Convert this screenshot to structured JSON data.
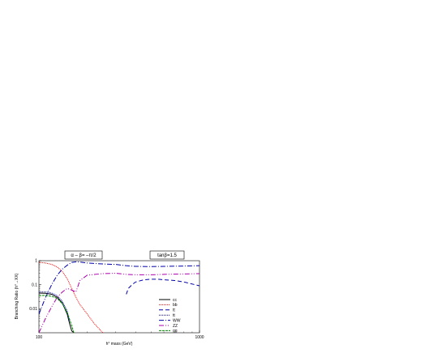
{
  "chart_data": {
    "type": "line",
    "xlabel": "h° mass (GeV)",
    "ylabel": "Branching Ratio (h°→XX)",
    "xscale": "log",
    "yscale": "log",
    "xlim": [
      100,
      1000
    ],
    "ylim": [
      0.001,
      1
    ],
    "x_ticks": [
      {
        "value": 100,
        "label": "100"
      },
      {
        "value": 1000,
        "label": "1000"
      }
    ],
    "y_ticks": [
      {
        "value": 1,
        "label": "1"
      },
      {
        "value": 0.1,
        "label": "0.1"
      },
      {
        "value": 0.01,
        "label": "0.01"
      }
    ],
    "annotations": [
      {
        "id": "alpha",
        "text": "α – β= –π/2",
        "boxed": true
      },
      {
        "id": "tanb",
        "text": "tanβ=1.5",
        "boxed": true
      }
    ],
    "legend_position": "bottom-right",
    "series": [
      {
        "name": "cc",
        "color": "#000000",
        "dash": "",
        "x": [
          100,
          110,
          120,
          130,
          140,
          150,
          155,
          160,
          165
        ],
        "y": [
          0.045,
          0.044,
          0.04,
          0.03,
          0.017,
          0.006,
          0.0025,
          0.0012,
          0.001
        ]
      },
      {
        "name": "bb",
        "color": "#ff0000",
        "dash": "1,1",
        "x": [
          100,
          110,
          120,
          130,
          140,
          150,
          160,
          170,
          180,
          200,
          220,
          250
        ],
        "y": [
          0.85,
          0.8,
          0.7,
          0.55,
          0.35,
          0.18,
          0.07,
          0.03,
          0.015,
          0.006,
          0.0025,
          0.001
        ]
      },
      {
        "name": "tt",
        "color": "#0000aa",
        "dash": "5,3",
        "x": [
          350,
          360,
          380,
          400,
          450,
          500,
          550,
          600,
          700,
          800,
          1000
        ],
        "y": [
          0.04,
          0.07,
          0.1,
          0.13,
          0.16,
          0.17,
          0.17,
          0.16,
          0.15,
          0.13,
          0.09
        ]
      },
      {
        "name": "tt",
        "color": "#0000aa",
        "dash": "1,1",
        "x": [
          100,
          110,
          120,
          130,
          140,
          150,
          155
        ],
        "y": [
          0.05,
          0.05,
          0.045,
          0.035,
          0.02,
          0.008,
          0.003
        ]
      },
      {
        "name": "WW",
        "color": "#0000aa",
        "dash": "6,2,1,2",
        "x": [
          100,
          110,
          120,
          130,
          140,
          150,
          160,
          170,
          180,
          200,
          250,
          300,
          350,
          400,
          500,
          600,
          800,
          1000
        ],
        "y": [
          0.006,
          0.03,
          0.1,
          0.25,
          0.45,
          0.65,
          0.85,
          0.9,
          0.88,
          0.8,
          0.73,
          0.7,
          0.62,
          0.58,
          0.57,
          0.58,
          0.6,
          0.62
        ]
      },
      {
        "name": "ZZ",
        "color": "#aa00aa",
        "dash": "6,2,1,2,1,2",
        "x": [
          100,
          110,
          120,
          130,
          140,
          150,
          160,
          170,
          180,
          200,
          250,
          300,
          350,
          400,
          500,
          600,
          800,
          1000
        ],
        "y": [
          0.001,
          0.004,
          0.012,
          0.03,
          0.05,
          0.07,
          0.06,
          0.05,
          0.15,
          0.25,
          0.29,
          0.3,
          0.27,
          0.26,
          0.26,
          0.27,
          0.28,
          0.29
        ]
      },
      {
        "name": "gg",
        "color": "#008800",
        "dash": "3,1",
        "x": [
          100,
          110,
          120,
          130,
          140,
          150,
          160,
          165
        ],
        "y": [
          0.035,
          0.036,
          0.033,
          0.027,
          0.016,
          0.007,
          0.002,
          0.001
        ]
      }
    ]
  }
}
